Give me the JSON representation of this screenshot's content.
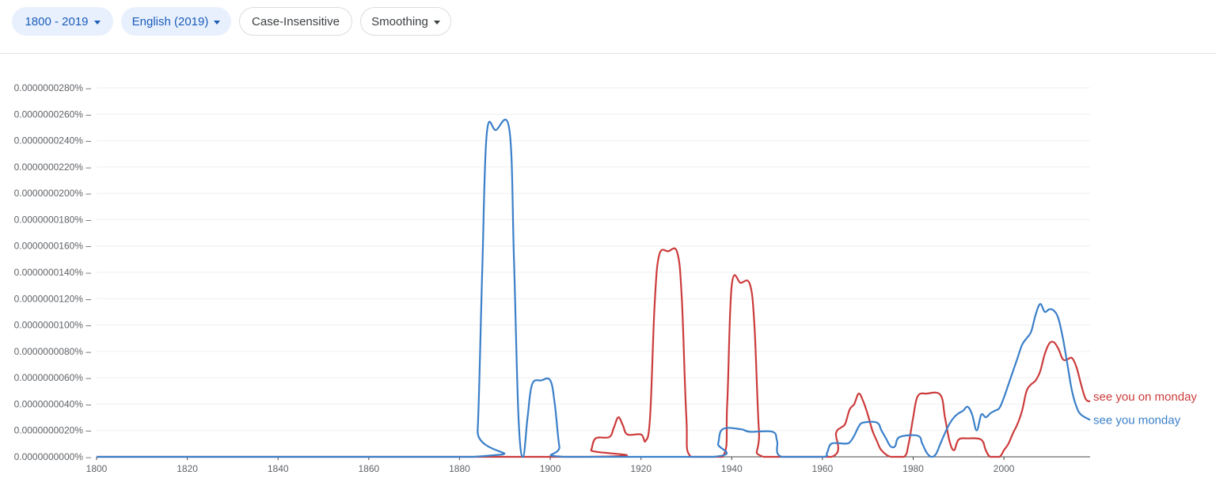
{
  "toolbar": {
    "year_range": "1800 - 2019",
    "corpus": "English (2019)",
    "case": "Case-Insensitive",
    "smoothing": "Smoothing"
  },
  "colors": {
    "accent": "#1a5cb8",
    "series_red": "#cc3b3b",
    "series_blue": "#3a7fc9"
  },
  "chart_data": {
    "type": "line",
    "xlim": [
      1800,
      2019
    ],
    "ylim": [
      0,
      2.8e-08
    ],
    "grid": true,
    "legend": "right end of lines",
    "yticks": [
      "0.0000000000%",
      "0.0000000020%",
      "0.0000000040%",
      "0.0000000060%",
      "0.0000000080%",
      "0.0000000100%",
      "0.0000000120%",
      "0.0000000140%",
      "0.0000000160%",
      "0.0000000180%",
      "0.0000000200%",
      "0.0000000220%",
      "0.0000000240%",
      "0.0000000260%",
      "0.0000000280%"
    ],
    "xticks": [
      "1800",
      "1820",
      "1840",
      "1860",
      "1880",
      "1900",
      "1920",
      "1940",
      "1960",
      "1980",
      "2000"
    ],
    "series": [
      {
        "name": "see you on monday",
        "color": "#cc3b3b",
        "points": [
          [
            1800,
            0
          ],
          [
            1908,
            0
          ],
          [
            1909,
            5e-10
          ],
          [
            1910,
            1.4e-09
          ],
          [
            1913,
            1.5e-09
          ],
          [
            1914,
            2.2e-09
          ],
          [
            1915,
            3e-09
          ],
          [
            1916,
            2.4e-09
          ],
          [
            1917,
            1.7e-09
          ],
          [
            1920,
            1.7e-09
          ],
          [
            1921,
            1.2e-09
          ],
          [
            1922,
            3e-09
          ],
          [
            1923,
            1.15e-08
          ],
          [
            1924,
            1.53e-08
          ],
          [
            1926,
            1.56e-08
          ],
          [
            1928,
            1.55e-08
          ],
          [
            1929,
            1.2e-08
          ],
          [
            1930,
            3e-09
          ],
          [
            1931,
            0
          ],
          [
            1938,
            0
          ],
          [
            1939,
            4e-09
          ],
          [
            1940,
            1.3e-08
          ],
          [
            1942,
            1.32e-08
          ],
          [
            1944,
            1.31e-08
          ],
          [
            1945,
            1e-08
          ],
          [
            1946,
            2e-09
          ],
          [
            1947,
            0
          ],
          [
            1962,
            0
          ],
          [
            1963,
            1.8e-09
          ],
          [
            1964,
            2.2e-09
          ],
          [
            1965,
            2.5e-09
          ],
          [
            1966,
            3.6e-09
          ],
          [
            1967,
            4e-09
          ],
          [
            1968,
            4.8e-09
          ],
          [
            1969,
            4.2e-09
          ],
          [
            1970,
            3.2e-09
          ],
          [
            1971,
            2e-09
          ],
          [
            1972,
            1.2e-09
          ],
          [
            1973,
            5e-10
          ],
          [
            1975,
            0
          ],
          [
            1978,
            0
          ],
          [
            1979,
            1e-09
          ],
          [
            1980,
            3e-09
          ],
          [
            1981,
            4.6e-09
          ],
          [
            1983,
            4.8e-09
          ],
          [
            1986,
            4.7e-09
          ],
          [
            1987,
            3e-09
          ],
          [
            1988,
            1.2e-09
          ],
          [
            1989,
            5e-10
          ],
          [
            1990,
            1.3e-09
          ],
          [
            1992,
            1.4e-09
          ],
          [
            1995,
            1.3e-09
          ],
          [
            1996,
            5e-10
          ],
          [
            1997,
            0
          ],
          [
            1999,
            0
          ],
          [
            2000,
            5e-10
          ],
          [
            2001,
            1e-09
          ],
          [
            2002,
            1.8e-09
          ],
          [
            2003,
            2.5e-09
          ],
          [
            2004,
            3.5e-09
          ],
          [
            2005,
            5e-09
          ],
          [
            2006,
            5.5e-09
          ],
          [
            2007,
            5.8e-09
          ],
          [
            2008,
            6.5e-09
          ],
          [
            2009,
            7.8e-09
          ],
          [
            2010,
            8.6e-09
          ],
          [
            2011,
            8.7e-09
          ],
          [
            2012,
            8.2e-09
          ],
          [
            2013,
            7.4e-09
          ],
          [
            2014,
            7.4e-09
          ],
          [
            2015,
            7.5e-09
          ],
          [
            2016,
            6.8e-09
          ],
          [
            2017,
            5.5e-09
          ],
          [
            2018,
            4.4e-09
          ],
          [
            2019,
            4.2e-09
          ]
        ]
      },
      {
        "name": "see you monday",
        "color": "#3a7fc9",
        "points": [
          [
            1800,
            0
          ],
          [
            1883,
            0
          ],
          [
            1884,
            2e-09
          ],
          [
            1885,
            1.4e-08
          ],
          [
            1886,
            2.45e-08
          ],
          [
            1888,
            2.48e-08
          ],
          [
            1891,
            2.48e-08
          ],
          [
            1892,
            1.5e-08
          ],
          [
            1893,
            3e-09
          ],
          [
            1894,
            0
          ],
          [
            1895,
            3e-09
          ],
          [
            1896,
            5.5e-09
          ],
          [
            1898,
            5.8e-09
          ],
          [
            1900,
            5.8e-09
          ],
          [
            1901,
            4e-09
          ],
          [
            1902,
            8e-10
          ],
          [
            1903,
            0
          ],
          [
            1936,
            0
          ],
          [
            1937,
            1e-09
          ],
          [
            1938,
            2.1e-09
          ],
          [
            1942,
            2.1e-09
          ],
          [
            1944,
            1.9e-09
          ],
          [
            1949,
            1.9e-09
          ],
          [
            1950,
            1.2e-09
          ],
          [
            1951,
            0
          ],
          [
            1960,
            0
          ],
          [
            1961,
            3e-10
          ],
          [
            1962,
            1e-09
          ],
          [
            1965,
            1e-09
          ],
          [
            1966,
            1.1e-09
          ],
          [
            1967,
            1.6e-09
          ],
          [
            1968,
            2.3e-09
          ],
          [
            1969,
            2.6e-09
          ],
          [
            1972,
            2.6e-09
          ],
          [
            1973,
            2e-09
          ],
          [
            1974,
            1.4e-09
          ],
          [
            1975,
            8e-10
          ],
          [
            1976,
            8e-10
          ],
          [
            1977,
            1.5e-09
          ],
          [
            1981,
            1.6e-09
          ],
          [
            1982,
            1e-09
          ],
          [
            1983,
            3e-10
          ],
          [
            1984,
            0
          ],
          [
            1985,
            2e-10
          ],
          [
            1986,
            1e-09
          ],
          [
            1987,
            1.8e-09
          ],
          [
            1988,
            2.5e-09
          ],
          [
            1989,
            3e-09
          ],
          [
            1990,
            3.3e-09
          ],
          [
            1991,
            3.5e-09
          ],
          [
            1992,
            3.8e-09
          ],
          [
            1993,
            3.2e-09
          ],
          [
            1994,
            2e-09
          ],
          [
            1995,
            3.2e-09
          ],
          [
            1996,
            3e-09
          ],
          [
            1997,
            3.3e-09
          ],
          [
            1998,
            3.5e-09
          ],
          [
            1999,
            3.7e-09
          ],
          [
            2000,
            4.5e-09
          ],
          [
            2001,
            5.5e-09
          ],
          [
            2002,
            6.5e-09
          ],
          [
            2003,
            7.5e-09
          ],
          [
            2004,
            8.5e-09
          ],
          [
            2005,
            9e-09
          ],
          [
            2006,
            9.5e-09
          ],
          [
            2007,
            1.08e-08
          ],
          [
            2008,
            1.16e-08
          ],
          [
            2009,
            1.1e-08
          ],
          [
            2010,
            1.12e-08
          ],
          [
            2011,
            1.11e-08
          ],
          [
            2012,
            1.05e-08
          ],
          [
            2013,
            9e-09
          ],
          [
            2014,
            7e-09
          ],
          [
            2015,
            5e-09
          ],
          [
            2016,
            3.8e-09
          ],
          [
            2017,
            3.2e-09
          ],
          [
            2019,
            2.8e-09
          ]
        ]
      }
    ]
  }
}
